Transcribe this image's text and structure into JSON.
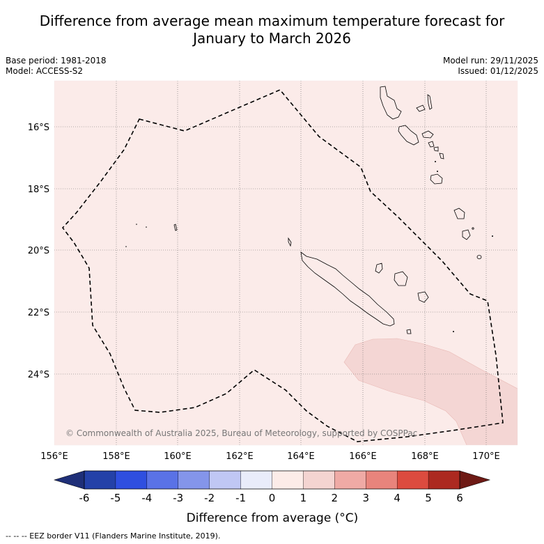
{
  "title": {
    "line1": "Difference from average mean maximum temperature forecast for",
    "line2": "January to March 2026"
  },
  "meta": {
    "base_period": "Base period: 1981-2018",
    "model": "Model: ACCESS-S2",
    "model_run": "Model run: 29/11/2025",
    "issued": "Issued: 01/12/2025"
  },
  "map": {
    "lon_range": [
      156,
      171
    ],
    "lat_range": [
      -26.5,
      -14.8
    ],
    "lon_ticks": [
      "156°E",
      "158°E",
      "160°E",
      "162°E",
      "164°E",
      "166°E",
      "168°E",
      "170°E"
    ],
    "lat_ticks": [
      "16°S",
      "18°S",
      "20°S",
      "22°S",
      "24°S"
    ],
    "background_color": "#fbebe9",
    "anomaly_patch_color": "#f4d6d4",
    "copyright": "© Commonwealth of Australia 2025, Bureau of Meteorology, supported by COSPPac"
  },
  "colorbar": {
    "ticks": [
      "-6",
      "-5",
      "-4",
      "-3",
      "-2",
      "-1",
      "0",
      "1",
      "2",
      "3",
      "4",
      "5",
      "6"
    ],
    "colors": [
      "#2441a8",
      "#2f4fe0",
      "#5a72e6",
      "#8495ea",
      "#c0c7f4",
      "#e9ecfa",
      "#fcece8",
      "#f4d4d1",
      "#efaaa5",
      "#e8847c",
      "#dc4b3f",
      "#ac2920"
    ],
    "under_color": "#1f2f78",
    "over_color": "#6e1a15",
    "title": "Difference from average (°C)"
  },
  "footer": {
    "text": "--  --  -- EEZ border V11 (Flanders Marine Institute, 2019)."
  }
}
